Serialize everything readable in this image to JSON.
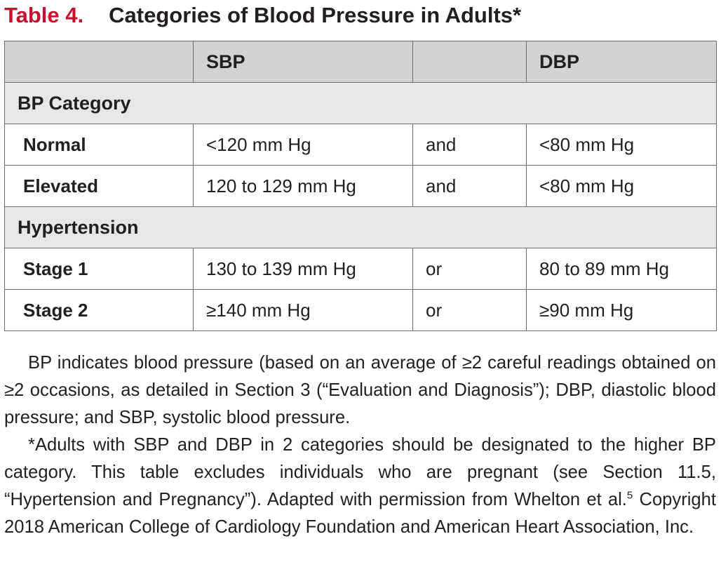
{
  "title": {
    "number": "Table 4.",
    "text": "Categories of Blood Pressure in Adults*"
  },
  "table": {
    "headers": [
      "",
      "SBP",
      "",
      "DBP"
    ],
    "sections": [
      {
        "label": "BP Category",
        "rows": [
          {
            "category": "Normal",
            "sbp": "<120 mm Hg",
            "conj": "and",
            "dbp": "<80 mm Hg"
          },
          {
            "category": "Elevated",
            "sbp": "120 to 129 mm Hg",
            "conj": "and",
            "dbp": "<80 mm Hg"
          }
        ]
      },
      {
        "label": "Hypertension",
        "rows": [
          {
            "category": "Stage 1",
            "sbp": "130 to 139 mm Hg",
            "conj": "or",
            "dbp": "80 to 89 mm Hg"
          },
          {
            "category": "Stage 2",
            "sbp": "≥140 mm Hg",
            "conj": "or",
            "dbp": "≥90 mm Hg"
          }
        ]
      }
    ]
  },
  "footnotes": {
    "abbreviations": "BP indicates blood pressure (based on an average of ≥2 careful readings obtained on ≥2 occasions, as detailed in Section 3 (“Evaluation and Diagnosis”); DBP, diastolic blood pressure; and SBP, systolic blood pressure.",
    "note_main": "*Adults with SBP and DBP in 2 categories should be designated to the higher BP category. This table excludes individuals who are pregnant (see Section 11.5, “Hypertension and Pregnancy”). Adapted with permission from Whelton et al.",
    "note_ref": "5",
    "note_tail": " Copyright 2018 American College of Cardiology Foundation and American Heart Association, Inc."
  }
}
